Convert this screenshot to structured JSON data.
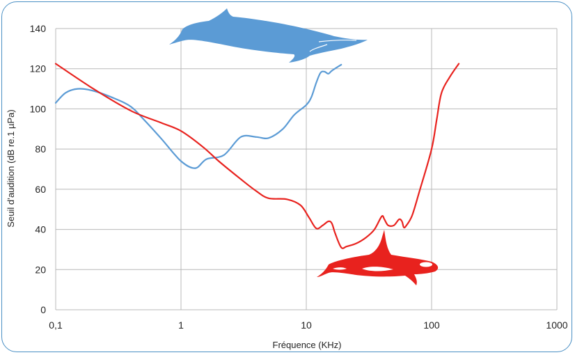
{
  "chart_data": {
    "type": "line",
    "xlabel": "Fréquence (KHz)",
    "ylabel": "Seuil d’audition (dB re.1 µPa)",
    "x_scale": "log",
    "xlim": [
      0.1,
      1000
    ],
    "ylim": [
      0,
      140
    ],
    "x_ticks": [
      "0,1",
      "1",
      "10",
      "100",
      "1000"
    ],
    "x_tick_values": [
      0.1,
      1,
      10,
      100,
      1000
    ],
    "y_ticks": [
      "0",
      "20",
      "40",
      "60",
      "80",
      "100",
      "120",
      "140"
    ],
    "y_tick_values": [
      0,
      20,
      40,
      60,
      80,
      100,
      120,
      140
    ],
    "grid": true,
    "series": [
      {
        "color": "#5b9bd5",
        "icon": "whale-icon",
        "points": [
          [
            0.1,
            103
          ],
          [
            0.12,
            108
          ],
          [
            0.15,
            110
          ],
          [
            0.2,
            109
          ],
          [
            0.3,
            105
          ],
          [
            0.4,
            101
          ],
          [
            0.5,
            95
          ],
          [
            0.7,
            85
          ],
          [
            1.0,
            74
          ],
          [
            1.3,
            70.5
          ],
          [
            1.6,
            75
          ],
          [
            2.2,
            77
          ],
          [
            3.0,
            86
          ],
          [
            4.0,
            86
          ],
          [
            5.0,
            85.5
          ],
          [
            6.5,
            90
          ],
          [
            8.0,
            97
          ],
          [
            10.0,
            102
          ],
          [
            11.0,
            106
          ],
          [
            12.0,
            113
          ],
          [
            13.0,
            118
          ],
          [
            14.0,
            118.5
          ],
          [
            15.0,
            117.5
          ],
          [
            16.0,
            119
          ],
          [
            19.0,
            122
          ]
        ]
      },
      {
        "color": "#e8221e",
        "icon": "orca-icon",
        "points": [
          [
            0.1,
            122.5
          ],
          [
            0.2,
            110
          ],
          [
            0.4,
            99
          ],
          [
            0.7,
            93
          ],
          [
            1.0,
            89
          ],
          [
            1.5,
            81
          ],
          [
            2.0,
            74
          ],
          [
            3.0,
            65
          ],
          [
            4.0,
            59
          ],
          [
            5.0,
            55.5
          ],
          [
            7.0,
            55
          ],
          [
            9.0,
            52
          ],
          [
            10.5,
            46
          ],
          [
            12.0,
            40.5
          ],
          [
            13.5,
            42
          ],
          [
            15.0,
            44
          ],
          [
            16.0,
            43
          ],
          [
            17.0,
            38
          ],
          [
            19.0,
            31
          ],
          [
            21.0,
            31.5
          ],
          [
            25.0,
            33
          ],
          [
            30.0,
            36
          ],
          [
            35.0,
            40
          ],
          [
            40.0,
            46.5
          ],
          [
            42.0,
            45
          ],
          [
            45.0,
            42
          ],
          [
            50.0,
            42
          ],
          [
            55.0,
            45
          ],
          [
            58.0,
            44
          ],
          [
            60.0,
            41
          ],
          [
            63.0,
            42
          ],
          [
            70.0,
            47
          ],
          [
            80.0,
            59
          ],
          [
            100.0,
            80
          ],
          [
            110.0,
            95
          ],
          [
            120.0,
            108
          ],
          [
            140.0,
            116
          ],
          [
            165.0,
            122.5
          ]
        ]
      }
    ]
  }
}
